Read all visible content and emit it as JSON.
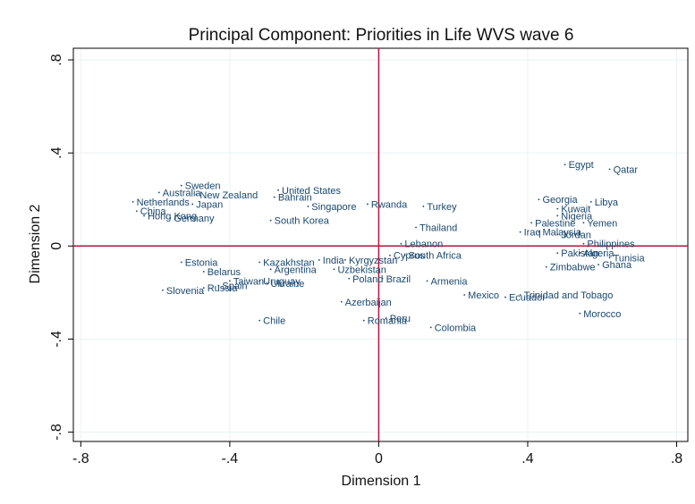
{
  "chart_data": {
    "type": "scatter",
    "title": "Principal Component: Priorities in Life WVS wave 6",
    "xlabel": "Dimension 1",
    "ylabel": "Dimension 2",
    "xlim": [
      -0.82,
      0.83
    ],
    "ylim": [
      -0.84,
      0.85
    ],
    "x_ticks": [
      -0.8,
      -0.4,
      0,
      0.4,
      0.8
    ],
    "x_tick_labels": [
      "-.8",
      "-.4",
      "0",
      ".4",
      ".8"
    ],
    "y_ticks": [
      -0.8,
      -0.4,
      0,
      0.4,
      0.8
    ],
    "y_tick_labels": [
      "-.8",
      "-.4",
      "0",
      ".4",
      ".8"
    ],
    "grid": true,
    "reference_lines": {
      "x": 0,
      "y": 0,
      "color": "#c0103a"
    },
    "marker_color": "#1a476f",
    "points": [
      {
        "label": "Sweden",
        "x": -0.53,
        "y": 0.26
      },
      {
        "label": "Australia",
        "x": -0.59,
        "y": 0.23
      },
      {
        "label": "New Zealand",
        "x": -0.49,
        "y": 0.22
      },
      {
        "label": "Netherlands",
        "x": -0.66,
        "y": 0.19
      },
      {
        "label": "Japan",
        "x": -0.5,
        "y": 0.18
      },
      {
        "label": "China",
        "x": -0.65,
        "y": 0.15
      },
      {
        "label": "Hong Kong",
        "x": -0.63,
        "y": 0.13
      },
      {
        "label": "Germany",
        "x": -0.56,
        "y": 0.12
      },
      {
        "label": "United States",
        "x": -0.27,
        "y": 0.24
      },
      {
        "label": "Bahrain",
        "x": -0.28,
        "y": 0.21
      },
      {
        "label": "Singapore",
        "x": -0.19,
        "y": 0.17
      },
      {
        "label": "South Korea",
        "x": -0.29,
        "y": 0.11
      },
      {
        "label": "Rwanda",
        "x": -0.03,
        "y": 0.18
      },
      {
        "label": "Turkey",
        "x": 0.12,
        "y": 0.17
      },
      {
        "label": "Thailand",
        "x": 0.1,
        "y": 0.08
      },
      {
        "label": "Lebanon",
        "x": 0.06,
        "y": 0.01
      },
      {
        "label": "Cyprus",
        "x": 0.03,
        "y": -0.04
      },
      {
        "label": "South Africa",
        "x": 0.07,
        "y": -0.04
      },
      {
        "label": "Estonia",
        "x": -0.53,
        "y": -0.07
      },
      {
        "label": "Belarus",
        "x": -0.47,
        "y": -0.11
      },
      {
        "label": "Spain",
        "x": -0.43,
        "y": -0.17
      },
      {
        "label": "Russia",
        "x": -0.47,
        "y": -0.18
      },
      {
        "label": "Slovenia",
        "x": -0.58,
        "y": -0.19
      },
      {
        "label": "Taiwan",
        "x": -0.4,
        "y": -0.15
      },
      {
        "label": "Uruguay",
        "x": -0.32,
        "y": -0.15
      },
      {
        "label": "Ukraine",
        "x": -0.3,
        "y": -0.16
      },
      {
        "label": "Kazakhstan",
        "x": -0.32,
        "y": -0.07
      },
      {
        "label": "Argentina",
        "x": -0.29,
        "y": -0.1
      },
      {
        "label": "India",
        "x": -0.16,
        "y": -0.06
      },
      {
        "label": "Kyrgyzstan",
        "x": -0.09,
        "y": -0.06
      },
      {
        "label": "Uzbekistan",
        "x": -0.12,
        "y": -0.1
      },
      {
        "label": "Poland",
        "x": -0.08,
        "y": -0.14
      },
      {
        "label": "Brazil",
        "x": 0.01,
        "y": -0.14
      },
      {
        "label": "Armenia",
        "x": 0.13,
        "y": -0.15
      },
      {
        "label": "Azerbaijan",
        "x": -0.1,
        "y": -0.24
      },
      {
        "label": "Romania",
        "x": -0.04,
        "y": -0.32
      },
      {
        "label": "Peru",
        "x": 0.02,
        "y": -0.31
      },
      {
        "label": "Colombia",
        "x": 0.14,
        "y": -0.35
      },
      {
        "label": "Chile",
        "x": -0.32,
        "y": -0.32
      },
      {
        "label": "Mexico",
        "x": 0.23,
        "y": -0.21
      },
      {
        "label": "Ecuador",
        "x": 0.34,
        "y": -0.22
      },
      {
        "label": "Trinidad and Tobago",
        "x": 0.38,
        "y": -0.21
      },
      {
        "label": "Egypt",
        "x": 0.5,
        "y": 0.35
      },
      {
        "label": "Qatar",
        "x": 0.62,
        "y": 0.33
      },
      {
        "label": "Georgia",
        "x": 0.43,
        "y": 0.2
      },
      {
        "label": "Libya",
        "x": 0.57,
        "y": 0.19
      },
      {
        "label": "Kuwait",
        "x": 0.48,
        "y": 0.16
      },
      {
        "label": "Nigeria",
        "x": 0.48,
        "y": 0.13
      },
      {
        "label": "Palestine",
        "x": 0.41,
        "y": 0.1
      },
      {
        "label": "Yemen",
        "x": 0.55,
        "y": 0.1
      },
      {
        "label": "Iraq",
        "x": 0.38,
        "y": 0.06
      },
      {
        "label": "Malaysia",
        "x": 0.43,
        "y": 0.06
      },
      {
        "label": "Jordan",
        "x": 0.48,
        "y": 0.05
      },
      {
        "label": "Philippines",
        "x": 0.55,
        "y": 0.01
      },
      {
        "label": "Pakistan",
        "x": 0.48,
        "y": -0.03
      },
      {
        "label": "Algeria",
        "x": 0.54,
        "y": -0.03
      },
      {
        "label": "Tunisia",
        "x": 0.62,
        "y": -0.05
      },
      {
        "label": "Ghana",
        "x": 0.59,
        "y": -0.08
      },
      {
        "label": "Zimbabwe",
        "x": 0.45,
        "y": -0.09
      },
      {
        "label": "Morocco",
        "x": 0.54,
        "y": -0.29
      }
    ]
  }
}
